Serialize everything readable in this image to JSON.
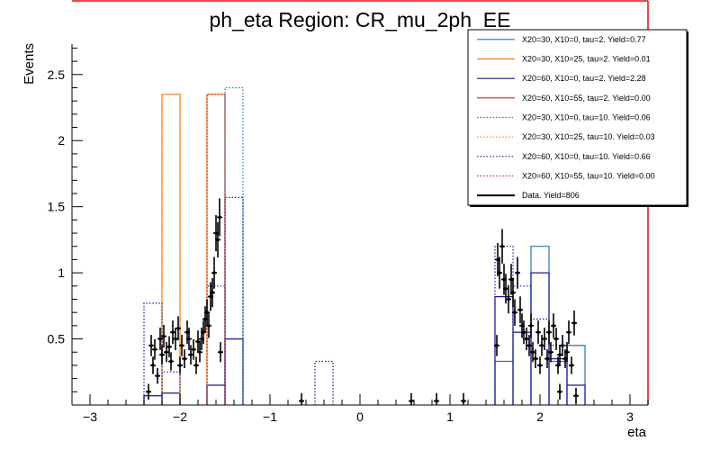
{
  "chart_data": {
    "type": "histogram",
    "title": "ph_eta Region: CR_mu_2ph_EE",
    "xlabel": "eta",
    "ylabel": "Events",
    "xlim": [
      -3.2,
      3.2
    ],
    "ylim": [
      0,
      2.73
    ],
    "xticks": [
      -3,
      -2,
      -1,
      0,
      1,
      2,
      3
    ],
    "xtick_labels": [
      "−3",
      "−2",
      "−1",
      "0",
      "1",
      "2",
      "3"
    ],
    "yticks": [
      0.5,
      1,
      1.5,
      2,
      2.5
    ],
    "ytick_labels": [
      "0.5",
      "1",
      "1.5",
      "2",
      "2.5"
    ],
    "bin_edges": [
      -3.0,
      -2.8,
      -2.6,
      -2.4,
      -2.2,
      -2.0,
      -1.9,
      -1.7,
      -1.5,
      -1.3,
      -1.1,
      -0.9,
      -0.7,
      -0.5,
      -0.3,
      -0.1,
      0.1,
      0.3,
      0.5,
      0.7,
      0.9,
      1.1,
      1.3,
      1.5,
      1.7,
      1.9,
      2.1,
      2.3,
      2.5,
      2.7,
      2.9,
      3.1
    ],
    "legend_position": "top-right",
    "series": [
      {
        "name": "X20=30, X10=0, tau=2. Yield=0.77",
        "color": "#1f77b4",
        "style": "solid",
        "values": [
          0,
          0,
          0,
          0.07,
          0.09,
          0,
          0,
          0,
          0,
          0,
          0,
          0,
          0,
          0,
          0,
          0,
          0,
          0,
          0,
          0,
          0,
          0,
          0,
          0.33,
          0.55,
          1.2,
          0.33,
          0.45,
          0,
          0,
          0
        ]
      },
      {
        "name": "X20=30, X10=25, tau=2. Yield=0.01",
        "color": "#ff7f0e",
        "style": "solid",
        "values": [
          0,
          0,
          0,
          0,
          2.35,
          0,
          0,
          2.35,
          0,
          0,
          0,
          0,
          0,
          0,
          0,
          0,
          0,
          0,
          0,
          0,
          0,
          0,
          0,
          0,
          0,
          0,
          0,
          0,
          0,
          0,
          0
        ]
      },
      {
        "name": "X20=60, X10=0, tau=2. Yield=2.28",
        "color": "#1a1aa0",
        "style": "solid",
        "values": [
          0,
          0,
          0,
          0.07,
          0.09,
          0,
          0,
          0.15,
          0.5,
          0,
          0,
          0,
          0,
          0,
          0,
          0,
          0,
          0,
          0,
          0,
          0,
          0,
          0,
          0.82,
          0.55,
          1.0,
          0.35,
          0.15,
          0,
          0,
          0
        ]
      },
      {
        "name": "X20=60, X10=55, tau=2. Yield=0.00",
        "color": "#d62728",
        "style": "solid",
        "values": []
      },
      {
        "name": "X20=30, X10=0, tau=10. Yield=0.06",
        "color": "#1f77b4",
        "style": "dotted",
        "values": [
          0,
          0,
          0,
          0,
          0,
          0,
          0,
          0,
          2.4,
          0,
          0,
          0,
          0,
          0,
          0,
          0,
          0,
          0,
          0,
          0,
          0,
          0,
          0,
          0,
          0,
          0,
          0,
          0,
          0,
          0,
          0
        ]
      },
      {
        "name": "X20=30, X10=25, tau=10. Yield=0.03",
        "color": "#ff7f0e",
        "style": "dotted",
        "values": [
          0,
          0,
          0,
          0,
          2.35,
          0,
          0,
          2.35,
          0,
          0,
          0,
          0,
          0,
          0,
          0,
          0,
          0,
          0,
          0,
          0,
          0,
          0,
          0,
          0,
          0,
          0,
          0,
          0,
          0,
          0,
          0
        ]
      },
      {
        "name": "X20=60, X10=0, tau=10. Yield=0.66",
        "color": "#1a1aa0",
        "style": "dotted",
        "values": [
          0,
          0,
          0,
          0.77,
          0.25,
          0,
          0,
          0.9,
          1.57,
          0,
          0,
          0,
          0,
          0.33,
          0,
          0,
          0,
          0,
          0,
          0,
          0,
          0,
          0,
          1.2,
          0.9,
          0.65,
          0.45,
          0,
          0,
          0,
          0
        ]
      },
      {
        "name": "X20=60, X10=55, tau=10. Yield=0.00",
        "color": "#d62728",
        "style": "dotted",
        "values": [
          0,
          0,
          0,
          0,
          0,
          0,
          0,
          2.35,
          0,
          0,
          0,
          0,
          0,
          0,
          0,
          0,
          0,
          0,
          0,
          0,
          0,
          0,
          0,
          0,
          0,
          0,
          0,
          0,
          0,
          0,
          0
        ]
      },
      {
        "name": "Data. Yield=806",
        "color": "#000000",
        "style": "points",
        "points": [
          [
            -2.35,
            0.1
          ],
          [
            -2.32,
            0.45
          ],
          [
            -2.3,
            0.3
          ],
          [
            -2.28,
            0.42
          ],
          [
            -2.25,
            0.22
          ],
          [
            -2.22,
            0.5
          ],
          [
            -2.2,
            0.38
          ],
          [
            -2.18,
            0.52
          ],
          [
            -2.15,
            0.4
          ],
          [
            -2.12,
            0.44
          ],
          [
            -2.1,
            0.33
          ],
          [
            -2.08,
            0.55
          ],
          [
            -2.05,
            0.5
          ],
          [
            -2.02,
            0.58
          ],
          [
            -2.0,
            0.3
          ],
          [
            -1.98,
            0.45
          ],
          [
            -1.95,
            0.35
          ],
          [
            -1.92,
            0.55
          ],
          [
            -1.9,
            0.5
          ],
          [
            -1.88,
            0.38
          ],
          [
            -1.85,
            0.42
          ],
          [
            -1.82,
            0.3
          ],
          [
            -1.8,
            0.48
          ],
          [
            -1.78,
            0.4
          ],
          [
            -1.76,
            0.5
          ],
          [
            -1.74,
            0.55
          ],
          [
            -1.72,
            0.65
          ],
          [
            -1.7,
            0.7
          ],
          [
            -1.68,
            0.6
          ],
          [
            -1.66,
            0.82
          ],
          [
            -1.64,
            0.85
          ],
          [
            -1.62,
            1.0
          ],
          [
            -1.6,
            1.3
          ],
          [
            -1.58,
            1.25
          ],
          [
            -1.56,
            1.42
          ],
          [
            -1.55,
            0.4
          ],
          [
            -0.65,
            0.03
          ],
          [
            0.57,
            0.03
          ],
          [
            0.85,
            0.03
          ],
          [
            1.15,
            0.03
          ],
          [
            1.52,
            0.45
          ],
          [
            1.53,
            1.1
          ],
          [
            1.55,
            1.0
          ],
          [
            1.58,
            1.2
          ],
          [
            1.6,
            0.95
          ],
          [
            1.62,
            0.88
          ],
          [
            1.65,
            0.8
          ],
          [
            1.68,
            0.95
          ],
          [
            1.7,
            0.85
          ],
          [
            1.72,
            0.7
          ],
          [
            1.75,
            1.0
          ],
          [
            1.78,
            0.72
          ],
          [
            1.8,
            0.6
          ],
          [
            1.82,
            0.55
          ],
          [
            1.85,
            0.5
          ],
          [
            1.88,
            0.45
          ],
          [
            1.9,
            0.6
          ],
          [
            1.92,
            0.4
          ],
          [
            1.95,
            0.35
          ],
          [
            1.98,
            0.55
          ],
          [
            2.0,
            0.3
          ],
          [
            2.02,
            0.45
          ],
          [
            2.05,
            0.5
          ],
          [
            2.08,
            0.35
          ],
          [
            2.1,
            0.55
          ],
          [
            2.12,
            0.4
          ],
          [
            2.15,
            0.6
          ],
          [
            2.18,
            0.5
          ],
          [
            2.2,
            0.3
          ],
          [
            2.22,
            0.38
          ],
          [
            2.25,
            0.45
          ],
          [
            2.28,
            0.35
          ],
          [
            2.3,
            0.4
          ],
          [
            2.32,
            0.55
          ],
          [
            2.35,
            0.3
          ],
          [
            2.38,
            0.62
          ],
          [
            2.4,
            0.07
          ],
          [
            2.22,
            0.1
          ]
        ]
      }
    ]
  }
}
